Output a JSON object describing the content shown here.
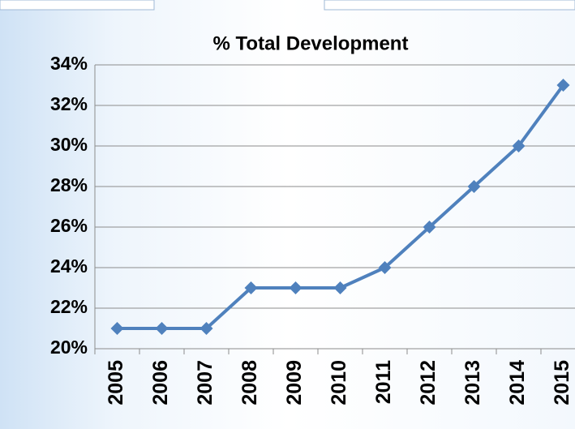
{
  "chart_data": {
    "type": "line",
    "title": "% Total Development",
    "categories": [
      "2005",
      "2006",
      "2007",
      "2008",
      "2009",
      "2010",
      "2011",
      "2012",
      "2013",
      "2014",
      "2015"
    ],
    "series": [
      {
        "name": "% Total Development",
        "color": "#4f81bd",
        "values": [
          21,
          21,
          21,
          23,
          23,
          23,
          24,
          26,
          28,
          30,
          33
        ]
      }
    ],
    "ylim": [
      20,
      34
    ],
    "yticks": [
      {
        "value": 20,
        "label": "20%"
      },
      {
        "value": 22,
        "label": "22%"
      },
      {
        "value": 24,
        "label": "24%"
      },
      {
        "value": 26,
        "label": "26%"
      },
      {
        "value": 28,
        "label": "28%"
      },
      {
        "value": 30,
        "label": "30%"
      },
      {
        "value": 32,
        "label": "32%"
      },
      {
        "value": 34,
        "label": "34%"
      }
    ],
    "grid": true
  }
}
